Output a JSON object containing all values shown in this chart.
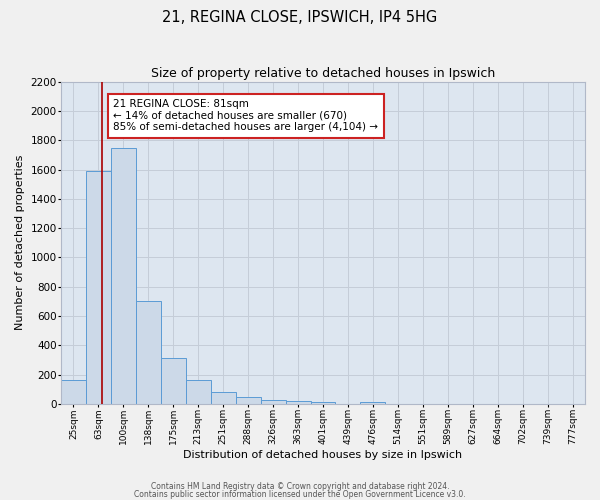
{
  "title": "21, REGINA CLOSE, IPSWICH, IP4 5HG",
  "subtitle": "Size of property relative to detached houses in Ipswich",
  "xlabel": "Distribution of detached houses by size in Ipswich",
  "ylabel": "Number of detached properties",
  "bar_color": "#ccd9e8",
  "bar_edge_color": "#5b9bd5",
  "grid_color": "#c5cdd8",
  "background_color": "#dde6f0",
  "fig_background": "#f0f0f0",
  "bin_labels": [
    "25sqm",
    "63sqm",
    "100sqm",
    "138sqm",
    "175sqm",
    "213sqm",
    "251sqm",
    "288sqm",
    "326sqm",
    "363sqm",
    "401sqm",
    "439sqm",
    "476sqm",
    "514sqm",
    "551sqm",
    "589sqm",
    "627sqm",
    "664sqm",
    "702sqm",
    "739sqm",
    "777sqm"
  ],
  "bin_values": [
    160,
    1590,
    1750,
    700,
    315,
    160,
    80,
    50,
    25,
    20,
    15,
    0,
    15,
    0,
    0,
    0,
    0,
    0,
    0,
    0,
    0
  ],
  "ylim": [
    0,
    2200
  ],
  "yticks": [
    0,
    200,
    400,
    600,
    800,
    1000,
    1200,
    1400,
    1600,
    1800,
    2000,
    2200
  ],
  "vline_x": 1.15,
  "vline_color": "#aa0000",
  "marker_label": "21 REGINA CLOSE: 81sqm",
  "marker_sublabel1": "← 14% of detached houses are smaller (670)",
  "marker_sublabel2": "85% of semi-detached houses are larger (4,104) →",
  "annotation_box_facecolor": "#ffffff",
  "annotation_box_edgecolor": "#cc2222",
  "footer1": "Contains HM Land Registry data © Crown copyright and database right 2024.",
  "footer2": "Contains public sector information licensed under the Open Government Licence v3.0."
}
